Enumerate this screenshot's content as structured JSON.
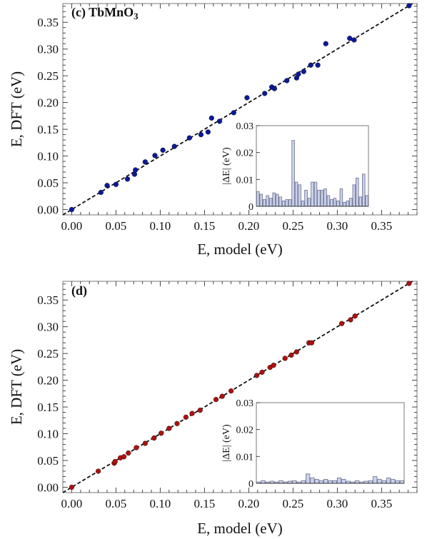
{
  "chart_data": [
    {
      "type": "scatter",
      "panel_label": "(c) TbMnO",
      "panel_label_subscript": "3",
      "xlabel": "E, model (eV)",
      "ylabel": "E, DFT (eV)",
      "xlim": [
        -0.01,
        0.39
      ],
      "ylim": [
        -0.01,
        0.385
      ],
      "xticks": [
        "0.00",
        "0.05",
        "0.10",
        "0.15",
        "0.20",
        "0.25",
        "0.30",
        "0.35"
      ],
      "yticks": [
        "0.00",
        "0.05",
        "0.10",
        "0.15",
        "0.20",
        "0.25",
        "0.30",
        "0.35"
      ],
      "grid": false,
      "reference_line": "y = x (dashed)",
      "point_color": "#0a1a9a",
      "points": [
        [
          0.0,
          0.0
        ],
        [
          0.033,
          0.032
        ],
        [
          0.04,
          0.045
        ],
        [
          0.05,
          0.047
        ],
        [
          0.063,
          0.057
        ],
        [
          0.071,
          0.066
        ],
        [
          0.072,
          0.074
        ],
        [
          0.083,
          0.089
        ],
        [
          0.094,
          0.101
        ],
        [
          0.103,
          0.111
        ],
        [
          0.116,
          0.118
        ],
        [
          0.133,
          0.134
        ],
        [
          0.146,
          0.14
        ],
        [
          0.154,
          0.145
        ],
        [
          0.158,
          0.171
        ],
        [
          0.167,
          0.165
        ],
        [
          0.183,
          0.181
        ],
        [
          0.198,
          0.209
        ],
        [
          0.218,
          0.217
        ],
        [
          0.226,
          0.229
        ],
        [
          0.229,
          0.226
        ],
        [
          0.243,
          0.241
        ],
        [
          0.254,
          0.246
        ],
        [
          0.256,
          0.253
        ],
        [
          0.262,
          0.258
        ],
        [
          0.27,
          0.27
        ],
        [
          0.278,
          0.27
        ],
        [
          0.287,
          0.31
        ],
        [
          0.314,
          0.32
        ],
        [
          0.319,
          0.317
        ],
        [
          0.381,
          0.381
        ]
      ],
      "inset": {
        "type": "bar",
        "ylabel": "|ΔE| (eV)",
        "ylim": [
          0,
          0.03
        ],
        "yticks": [
          "0",
          "0.01",
          "0.02",
          "0.03"
        ],
        "bar_color": "#c9d1ee",
        "values": [
          0.0055,
          0.0045,
          0.0025,
          0.004,
          0.003,
          0.005,
          0.0045,
          0.0035,
          0.002,
          0.0025,
          0.0025,
          0.0245,
          0.009,
          0.008,
          0.002,
          0.006,
          0.003,
          0.009,
          0.009,
          0.006,
          0.006,
          0.0065,
          0.004,
          0.0025,
          0.003,
          0.002,
          0.0065,
          0.0015,
          0.002,
          0.003,
          0.008,
          0.0105,
          0.0035,
          0.012,
          0.004
        ]
      }
    },
    {
      "type": "scatter",
      "panel_label": "(d)",
      "panel_label_subscript": "",
      "xlabel": "E, model (eV)",
      "ylabel": "E, DFT (eV)",
      "xlim": [
        -0.01,
        0.39
      ],
      "ylim": [
        -0.01,
        0.385
      ],
      "xticks": [
        "0.00",
        "0.05",
        "0.10",
        "0.15",
        "0.20",
        "0.25",
        "0.30",
        "0.35"
      ],
      "yticks": [
        "0.00",
        "0.05",
        "0.10",
        "0.15",
        "0.20",
        "0.25",
        "0.30",
        "0.35"
      ],
      "grid": false,
      "reference_line": "y = x (dashed)",
      "point_color": "#b01010",
      "points": [
        [
          0.0,
          0.0
        ],
        [
          0.03,
          0.03
        ],
        [
          0.048,
          0.045
        ],
        [
          0.049,
          0.048
        ],
        [
          0.055,
          0.055
        ],
        [
          0.059,
          0.057
        ],
        [
          0.064,
          0.064
        ],
        [
          0.073,
          0.074
        ],
        [
          0.083,
          0.082
        ],
        [
          0.093,
          0.092
        ],
        [
          0.101,
          0.101
        ],
        [
          0.11,
          0.11
        ],
        [
          0.119,
          0.119
        ],
        [
          0.129,
          0.131
        ],
        [
          0.136,
          0.138
        ],
        [
          0.145,
          0.144
        ],
        [
          0.163,
          0.164
        ],
        [
          0.17,
          0.17
        ],
        [
          0.18,
          0.18
        ],
        [
          0.209,
          0.209
        ],
        [
          0.215,
          0.215
        ],
        [
          0.224,
          0.224
        ],
        [
          0.228,
          0.228
        ],
        [
          0.241,
          0.241
        ],
        [
          0.248,
          0.247
        ],
        [
          0.254,
          0.253
        ],
        [
          0.268,
          0.27
        ],
        [
          0.271,
          0.27
        ],
        [
          0.305,
          0.306
        ],
        [
          0.315,
          0.313
        ],
        [
          0.32,
          0.32
        ],
        [
          0.381,
          0.381
        ]
      ],
      "inset": {
        "type": "bar",
        "ylabel": "|ΔE| (eV)",
        "ylim": [
          0,
          0.03
        ],
        "yticks": [
          "0",
          "0.01",
          "0.02",
          "0.03"
        ],
        "bar_color": "#c9d1ee",
        "values": [
          0.0005,
          0.001,
          0.0005,
          0.0008,
          0.0005,
          0.001,
          0.0005,
          0.0008,
          0.001,
          0.0005,
          0.001,
          0.0035,
          0.002,
          0.0015,
          0.001,
          0.0015,
          0.001,
          0.001,
          0.002,
          0.0015,
          0.0008,
          0.0005,
          0.001,
          0.0005,
          0.0008,
          0.001,
          0.0025,
          0.0015,
          0.001,
          0.002,
          0.0015,
          0.001,
          0.001
        ]
      }
    }
  ]
}
